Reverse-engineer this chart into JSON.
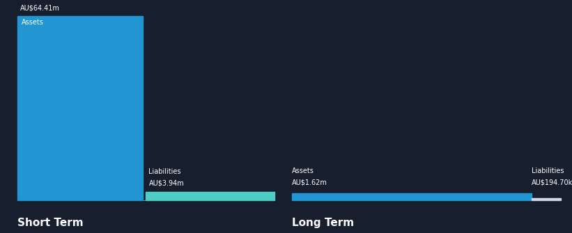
{
  "background_color": "#171e2e",
  "text_color": "#ffffff",
  "short_term": {
    "assets_value": 64.41,
    "assets_label": "AU$64.41m",
    "assets_bar_color": "#2196d3",
    "liabilities_value": 3.94,
    "liabilities_label": "AU$3.94m",
    "liabilities_bar_color": "#4ecdc4",
    "section_label": "Short Term"
  },
  "long_term": {
    "assets_value": 1.62,
    "assets_label": "AU$1.62m",
    "assets_bar_color": "#2196d3",
    "liabilities_value": 0.1947,
    "liabilities_label": "AU$194.70k",
    "liabilities_bar_color": "#d0d8e8",
    "section_label": "Long Term"
  },
  "inner_label_assets": "Assets",
  "inner_label_liabilities": "Liabilities"
}
